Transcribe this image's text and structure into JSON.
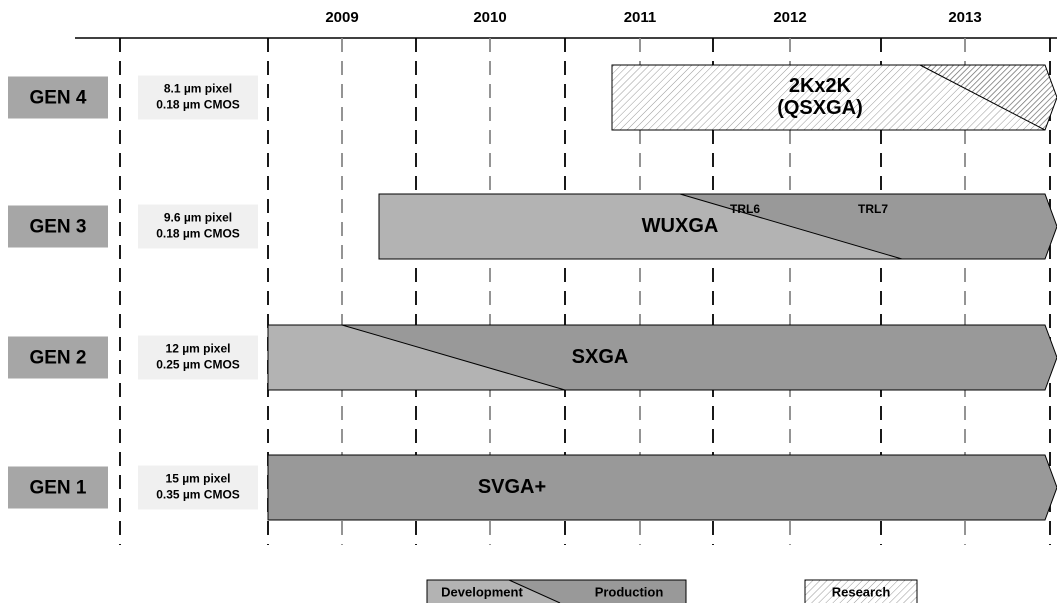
{
  "years": [
    "2009",
    "2010",
    "2011",
    "2012",
    "2013"
  ],
  "rows": [
    {
      "gen": "GEN 4",
      "spec": [
        "8.1 µm pixel",
        "0.18 µm CMOS"
      ],
      "bar": [
        "2Kx2K",
        "(QSXGA)"
      ]
    },
    {
      "gen": "GEN 3",
      "spec": [
        "9.6 µm pixel",
        "0.18 µm CMOS"
      ],
      "bar": [
        "WUXGA"
      ],
      "markers": [
        "TRL6",
        "TRL7"
      ]
    },
    {
      "gen": "GEN 2",
      "spec": [
        "12 µm pixel",
        "0.25 µm CMOS"
      ],
      "bar": [
        "SXGA"
      ]
    },
    {
      "gen": "GEN 1",
      "spec": [
        "15 µm pixel",
        "0.35 µm CMOS"
      ],
      "bar": [
        "SVGA+"
      ]
    }
  ],
  "legend": {
    "development": "Development",
    "production": "Production",
    "research": "Research"
  }
}
